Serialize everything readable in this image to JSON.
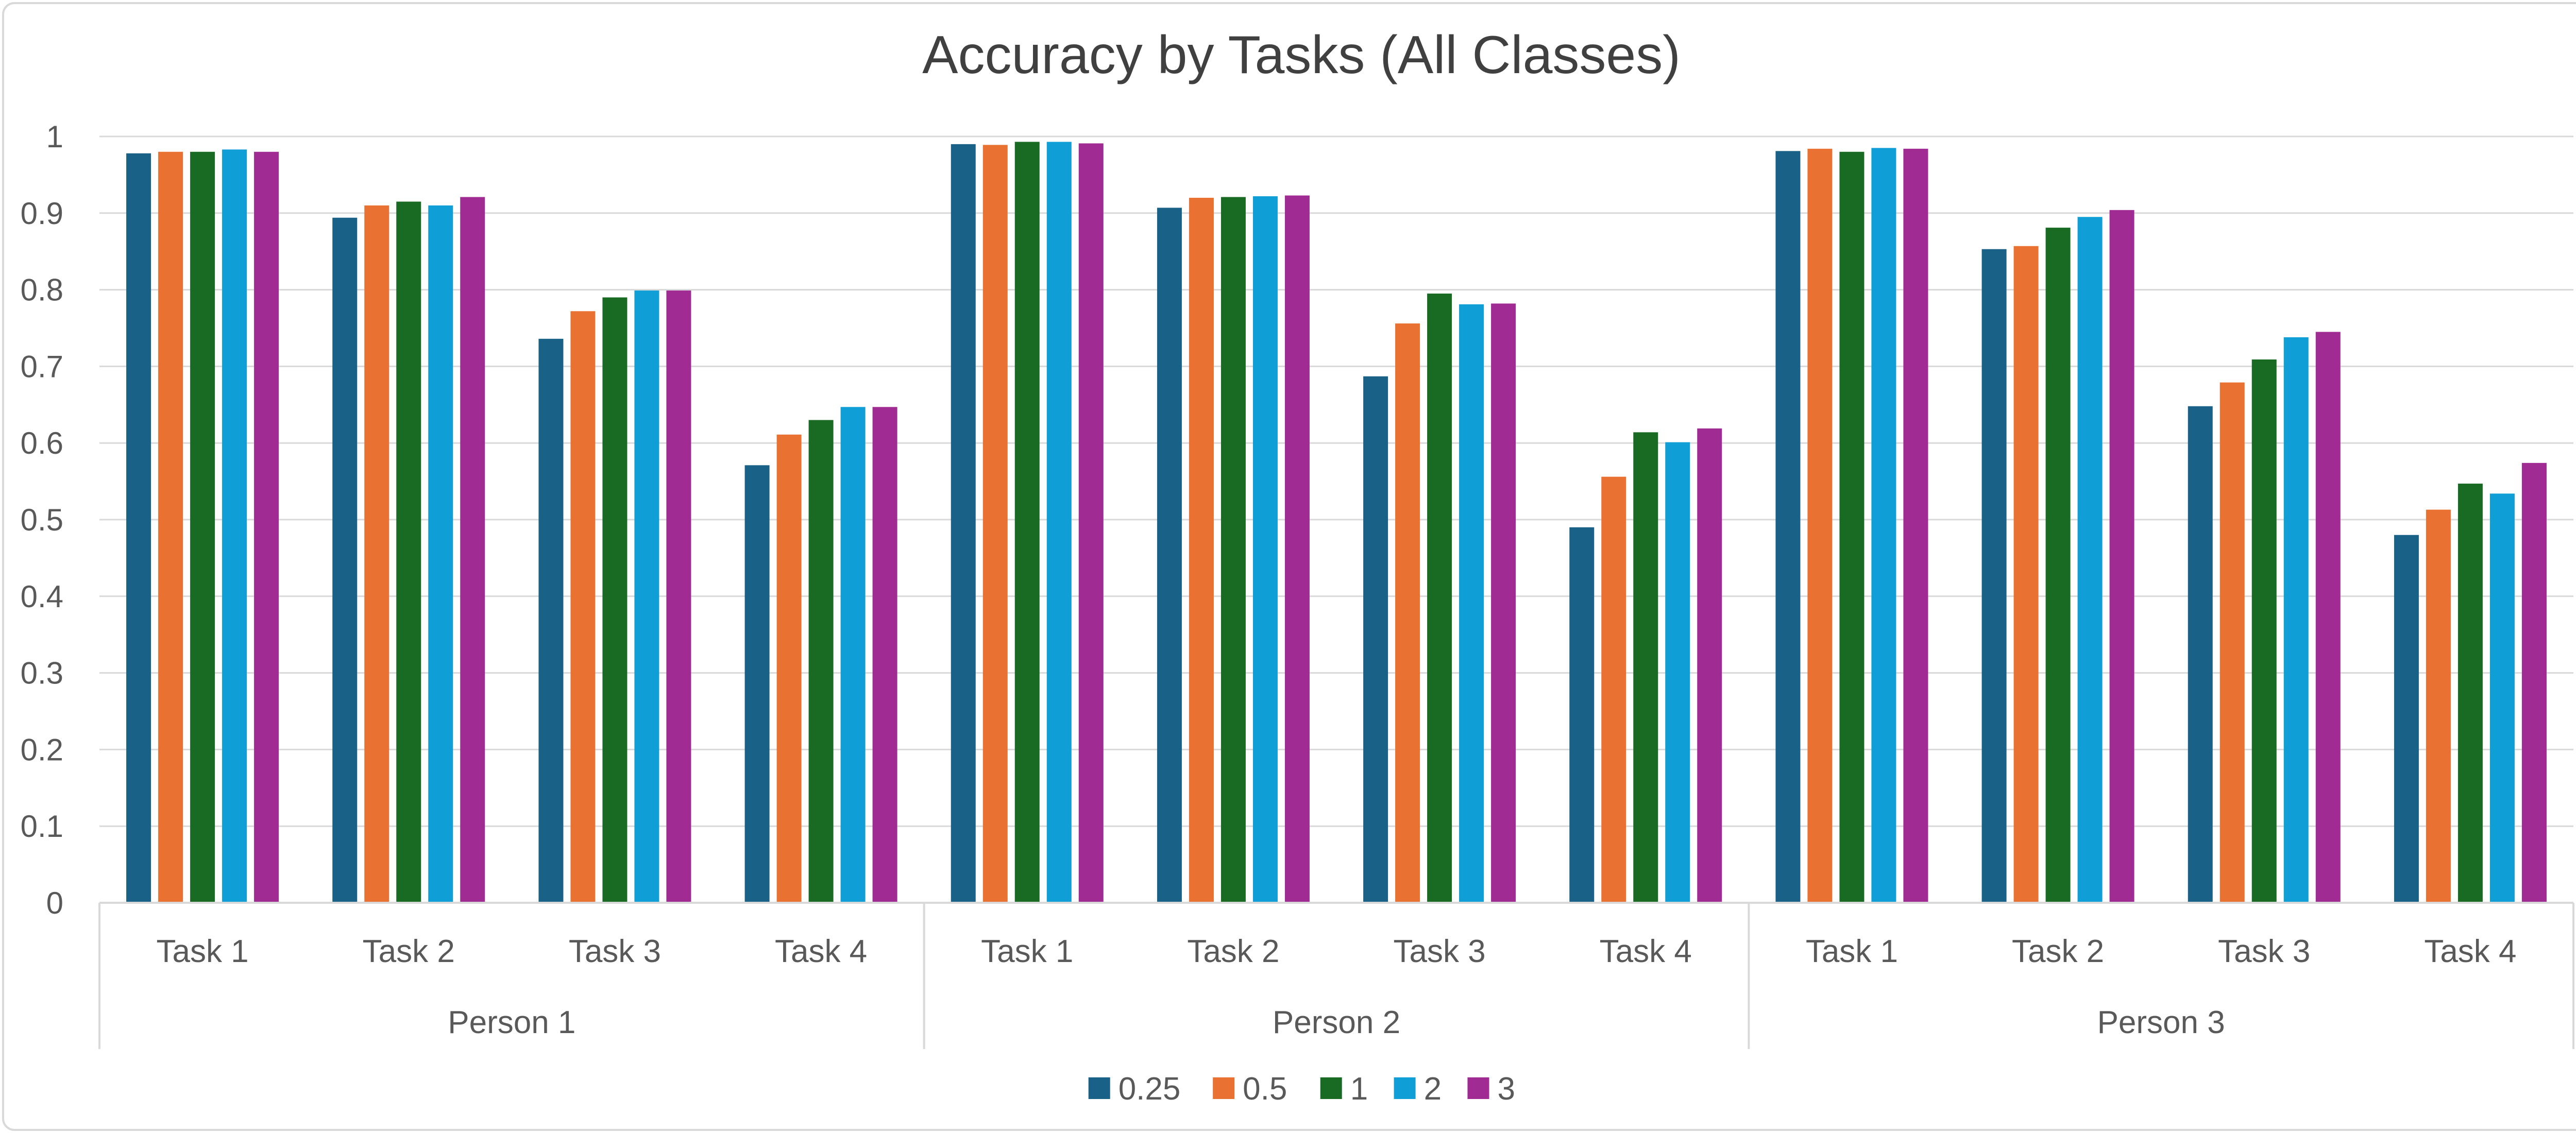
{
  "chart_data": {
    "type": "bar",
    "title": "Accuracy by Tasks (All Classes)",
    "xlabel": "",
    "ylabel": "",
    "ylim": [
      0,
      1
    ],
    "yticks": [
      "0",
      "0.1",
      "0.2",
      "0.3",
      "0.4",
      "0.5",
      "0.6",
      "0.7",
      "0.8",
      "0.9",
      "1"
    ],
    "grid": true,
    "legend_position": "bottom",
    "groups": [
      "Person 1",
      "Person 2",
      "Person 3"
    ],
    "categories": [
      "Task 1",
      "Task 2",
      "Task 3",
      "Task 4",
      "Task 1",
      "Task 2",
      "Task 3",
      "Task 4",
      "Task 1",
      "Task 2",
      "Task 3",
      "Task 4"
    ],
    "series": [
      {
        "name": "0.25",
        "color": "#196186",
        "values": [
          0.978,
          0.894,
          0.736,
          0.571,
          0.99,
          0.907,
          0.687,
          0.49,
          0.981,
          0.853,
          0.648,
          0.48
        ]
      },
      {
        "name": "0.5",
        "color": "#e97132",
        "values": [
          0.98,
          0.91,
          0.772,
          0.611,
          0.989,
          0.92,
          0.756,
          0.556,
          0.984,
          0.857,
          0.679,
          0.513
        ]
      },
      {
        "name": "1",
        "color": "#196b24",
        "values": [
          0.98,
          0.915,
          0.79,
          0.63,
          0.993,
          0.921,
          0.795,
          0.614,
          0.98,
          0.881,
          0.709,
          0.547
        ]
      },
      {
        "name": "2",
        "color": "#0f9ed5",
        "values": [
          0.983,
          0.91,
          0.799,
          0.647,
          0.993,
          0.922,
          0.781,
          0.601,
          0.985,
          0.895,
          0.738,
          0.534
        ]
      },
      {
        "name": "3",
        "color": "#a02b93",
        "values": [
          0.98,
          0.921,
          0.799,
          0.647,
          0.991,
          0.923,
          0.782,
          0.619,
          0.984,
          0.904,
          0.745,
          0.574
        ]
      }
    ]
  }
}
